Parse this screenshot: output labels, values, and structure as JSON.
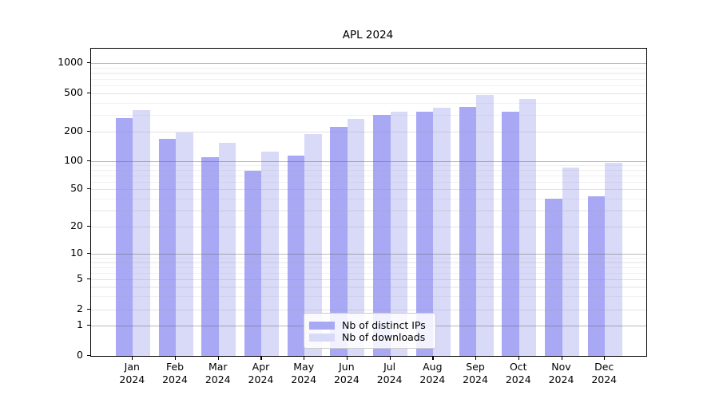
{
  "chart_data": {
    "type": "bar",
    "title": "APL 2024",
    "year": "2024",
    "months": [
      "Jan",
      "Feb",
      "Mar",
      "Apr",
      "May",
      "Jun",
      "Jul",
      "Aug",
      "Sep",
      "Oct",
      "Nov",
      "Dec"
    ],
    "categories": [
      "Jan 2024",
      "Feb 2024",
      "Mar 2024",
      "Apr 2024",
      "May 2024",
      "Jun 2024",
      "Jul 2024",
      "Aug 2024",
      "Sep 2024",
      "Oct 2024",
      "Nov 2024",
      "Dec 2024"
    ],
    "series": [
      {
        "name": "Nb of distinct IPs",
        "color": "#a8a8f4",
        "values": [
          280,
          170,
          110,
          79,
          113,
          226,
          300,
          321,
          364,
          325,
          40,
          42
        ]
      },
      {
        "name": "Nb of downloads",
        "color": "#d9d9f8",
        "values": [
          338,
          196,
          155,
          126,
          190,
          272,
          325,
          355,
          478,
          440,
          85,
          95
        ]
      }
    ],
    "yticks": [
      1000,
      500,
      200,
      100,
      50,
      20,
      10,
      5,
      2,
      1,
      0
    ],
    "ylabel": "",
    "xlabel": "",
    "scale": "symlog",
    "ylim": [
      0,
      1400
    ],
    "grid": true,
    "legend_position": "lower center"
  }
}
